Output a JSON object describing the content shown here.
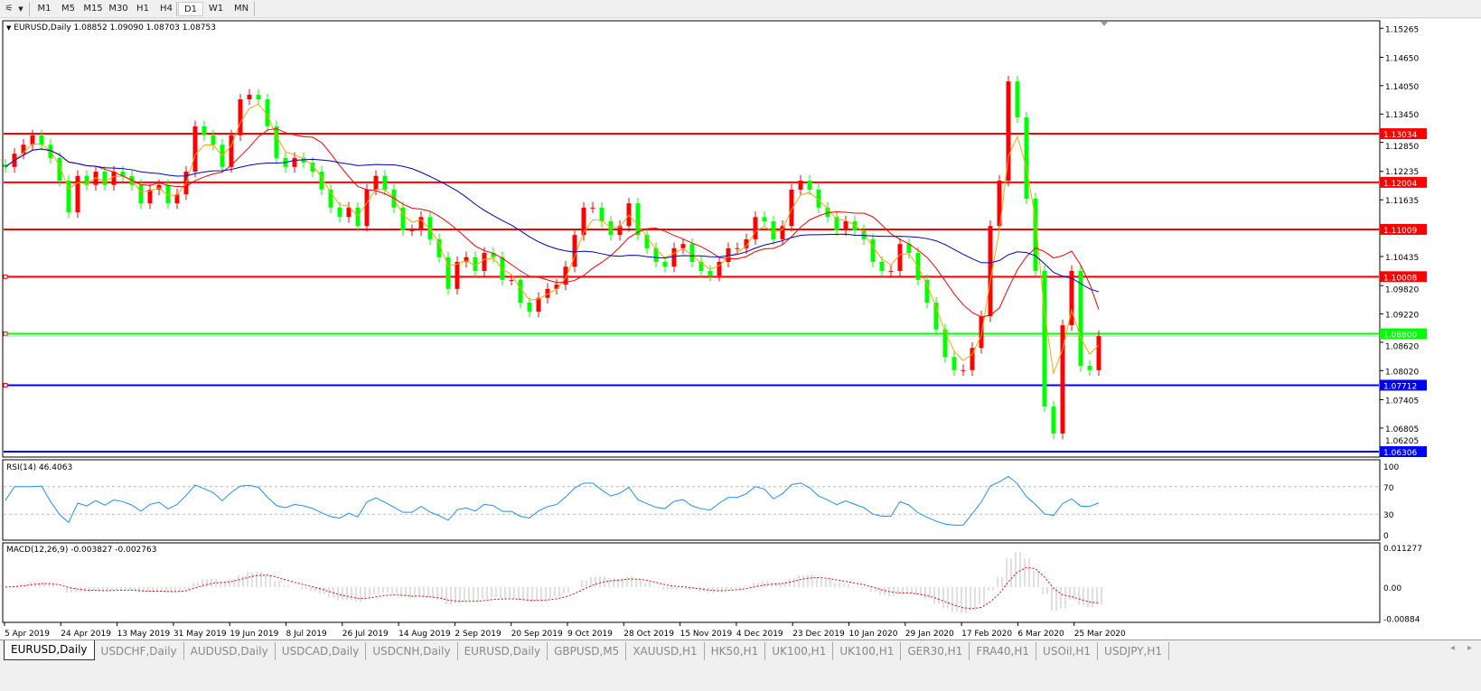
{
  "toolbar": {
    "timeframes": [
      "M1",
      "M5",
      "M15",
      "M30",
      "H1",
      "H4",
      "D1",
      "W1",
      "MN"
    ],
    "active": "D1"
  },
  "tabs": [
    "EURUSD,Daily",
    "USDCHF,Daily",
    "AUDUSD,Daily",
    "USDCAD,Daily",
    "USDCNH,Daily",
    "EURUSD,Daily",
    "GBPUSD,M5",
    "XAUUSD,H1",
    "HK50,H1",
    "UK100,H1",
    "UK100,H1",
    "GER30,H1",
    "FRA40,H1",
    "USOil,H1",
    "USDJPY,H1"
  ],
  "active_tab": 0,
  "chart_data": [
    {
      "type": "candlestick",
      "title": "EURUSD,Daily  1.08852 1.09090 1.08703 1.08753",
      "symbol": "EURUSD,Daily",
      "ohlc_last": {
        "open": 1.08852,
        "high": 1.0909,
        "low": 1.08703,
        "close": 1.08753
      },
      "bull_color": "#ff0000",
      "bear_color": "#00ff00",
      "closes": [
        1.1233,
        1.1261,
        1.128,
        1.13,
        1.128,
        1.1252,
        1.1204,
        1.1137,
        1.1214,
        1.1195,
        1.1223,
        1.1195,
        1.1223,
        1.1214,
        1.1195,
        1.1156,
        1.1185,
        1.1195,
        1.1156,
        1.1175,
        1.1223,
        1.1319,
        1.13,
        1.128,
        1.1233,
        1.13,
        1.1376,
        1.1386,
        1.1376,
        1.1319,
        1.1252,
        1.1233,
        1.1252,
        1.1242,
        1.1223,
        1.1185,
        1.1147,
        1.1127,
        1.1147,
        1.1108,
        1.1185,
        1.1214,
        1.1185,
        1.1147,
        1.1099,
        1.1099,
        1.1127,
        1.108,
        1.1042,
        1.0975,
        1.1032,
        1.1042,
        1.1013,
        1.1051,
        1.1042,
        1.0994,
        1.0994,
        1.0946,
        1.0927,
        1.0956,
        1.0975,
        1.0984,
        1.1022,
        1.1089,
        1.1147,
        1.1147,
        1.1118,
        1.1089,
        1.1108,
        1.1156,
        1.1089,
        1.1061,
        1.1032,
        1.1022,
        1.1061,
        1.107,
        1.1032,
        1.1013,
        1.1003,
        1.1032,
        1.1061,
        1.1061,
        1.108,
        1.1127,
        1.1118,
        1.108,
        1.1108,
        1.1185,
        1.1204,
        1.1185,
        1.1147,
        1.1127,
        1.1099,
        1.1118,
        1.1099,
        1.108,
        1.1032,
        1.1013,
        1.1013,
        1.107,
        1.1051,
        1.0994,
        1.0946,
        1.0889,
        1.0831,
        1.0803,
        1.0803,
        1.085,
        1.0917,
        1.1108,
        1.1204,
        1.1414,
        1.1338,
        1.1166,
        1.1013,
        1.0726,
        1.0669,
        1.0898,
        1.1013,
        1.0812,
        1.0803,
        1.0875
      ],
      "moving_averages": [
        {
          "color": "#ffa500"
        },
        {
          "color": "#ff0000"
        },
        {
          "color": "#0000cc"
        }
      ],
      "horizontal_lines": [
        {
          "price": "1.13034",
          "color": "#ff0000"
        },
        {
          "price": "1.12004",
          "color": "#ff0000"
        },
        {
          "price": "1.11009",
          "color": "#ff0000"
        },
        {
          "price": "1.10008",
          "color": "#ff0000"
        },
        {
          "price": "1.08800",
          "color": "#00ff00"
        },
        {
          "price": "1.07712",
          "color": "#0000ff"
        },
        {
          "price": "1.06306",
          "color": "#0000ff"
        }
      ],
      "bid_price": "1.08753",
      "y_ticks": [
        "1.15265",
        "1.14650",
        "1.14050",
        "1.13450",
        "1.12850",
        "1.12235",
        "1.11635",
        "1.10435",
        "1.09820",
        "1.09220",
        "1.08620",
        "1.08020",
        "1.07405",
        "1.06805",
        "1.06205"
      ],
      "x_ticks": [
        "5 Apr 2019",
        "24 Apr 2019",
        "13 May 2019",
        "31 May 2019",
        "19 Jun 2019",
        "8 Jul 2019",
        "26 Jul 2019",
        "14 Aug 2019",
        "2 Sep 2019",
        "20 Sep 2019",
        "9 Oct 2019",
        "28 Oct 2019",
        "15 Nov 2019",
        "4 Dec 2019",
        "23 Dec 2019",
        "10 Jan 2020",
        "29 Jan 2020",
        "17 Feb 2020",
        "6 Mar 2020",
        "25 Mar 2020"
      ]
    },
    {
      "type": "line",
      "label": "RSI(14) 46.4063",
      "y_ticks": [
        "100",
        "70",
        "30",
        "0"
      ],
      "levels": [
        70,
        30
      ],
      "color": "#1e90ff"
    },
    {
      "type": "bar",
      "label": "MACD(12,26,9) -0.003827 -0.002763",
      "y_ticks": [
        "0.011277",
        "0.00",
        "-0.00884"
      ],
      "ylim": [
        -0.00884,
        0.011277
      ],
      "histogram_color": "#c0c0c0",
      "signal_color": "#ff0000"
    }
  ]
}
